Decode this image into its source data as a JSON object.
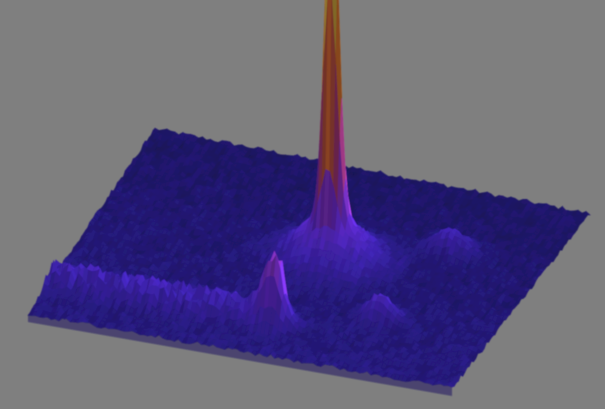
{
  "chart_data": {
    "type": "surface",
    "title": "",
    "xlabel": "",
    "ylabel": "",
    "zlabel": "",
    "axes_visible": false,
    "grid": false,
    "legend": "none",
    "colormap": [
      "#15104a",
      "#2a1e8c",
      "#4a2ad0",
      "#7a35ff",
      "#b040e0",
      "#e0507a",
      "#f47a30",
      "#f8b020",
      "#fff08a",
      "#ffffff"
    ],
    "background": "#7f7f7f",
    "z_range": [
      0,
      1
    ],
    "features": [
      {
        "label": "main-peak",
        "x": 0.55,
        "y": 0.47,
        "height": 1.0,
        "width": 0.022
      },
      {
        "label": "main-peak-base",
        "x": 0.55,
        "y": 0.47,
        "height": 0.13,
        "width": 0.1
      },
      {
        "label": "secondary-peak",
        "x": 0.53,
        "y": 0.84,
        "height": 0.16,
        "width": 0.035
      },
      {
        "label": "back-bump",
        "x": 0.78,
        "y": 0.32,
        "height": 0.06,
        "width": 0.05
      },
      {
        "label": "right-bump",
        "x": 0.74,
        "y": 0.72,
        "height": 0.07,
        "width": 0.04
      },
      {
        "label": "front-ridge",
        "axis": "y",
        "y": 0.82,
        "height": 0.045,
        "width": 0.05,
        "x_from": 0.0,
        "x_to": 0.55
      }
    ]
  }
}
